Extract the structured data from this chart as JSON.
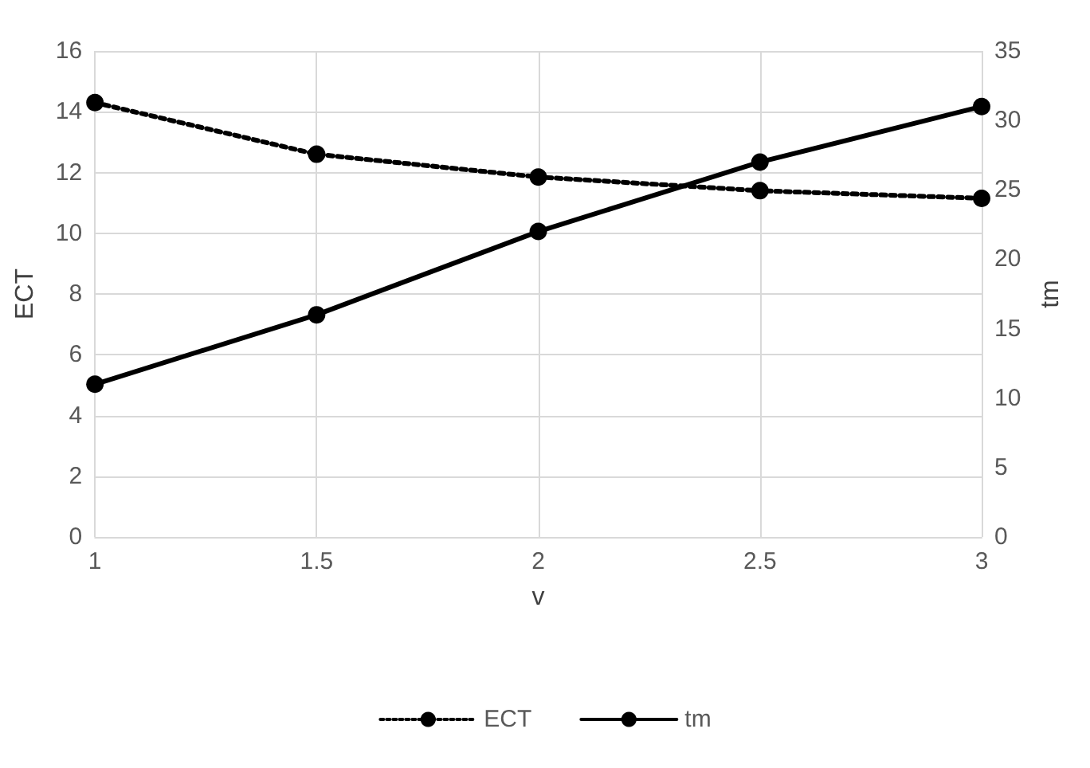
{
  "chart_data": {
    "type": "line",
    "xlabel": "v",
    "ylabel": "ECT",
    "y2label": "tm",
    "x": [
      1,
      1.5,
      2,
      2.5,
      3
    ],
    "series": [
      {
        "name": "ECT",
        "color": "#000000",
        "values": [
          14.3,
          12.6,
          11.85,
          11.4,
          11.15
        ],
        "line_style": "dotted"
      },
      {
        "name": "tm",
        "color": "#000000",
        "values": [
          11,
          16,
          22,
          27,
          31
        ],
        "axis": "y2",
        "line_style": "solid"
      }
    ],
    "xlim": [
      1,
      3
    ],
    "xticks": [
      1,
      1.5,
      2,
      2.5,
      3
    ],
    "ylim": [
      0,
      16
    ],
    "yticks": [
      0,
      2,
      4,
      6,
      8,
      10,
      12,
      14,
      16
    ],
    "y2lim": [
      0,
      35
    ],
    "y2ticks": [
      0,
      5,
      10,
      15,
      20,
      25,
      30,
      35
    ],
    "grid": true,
    "legend": "bottom",
    "marker": "circle"
  }
}
